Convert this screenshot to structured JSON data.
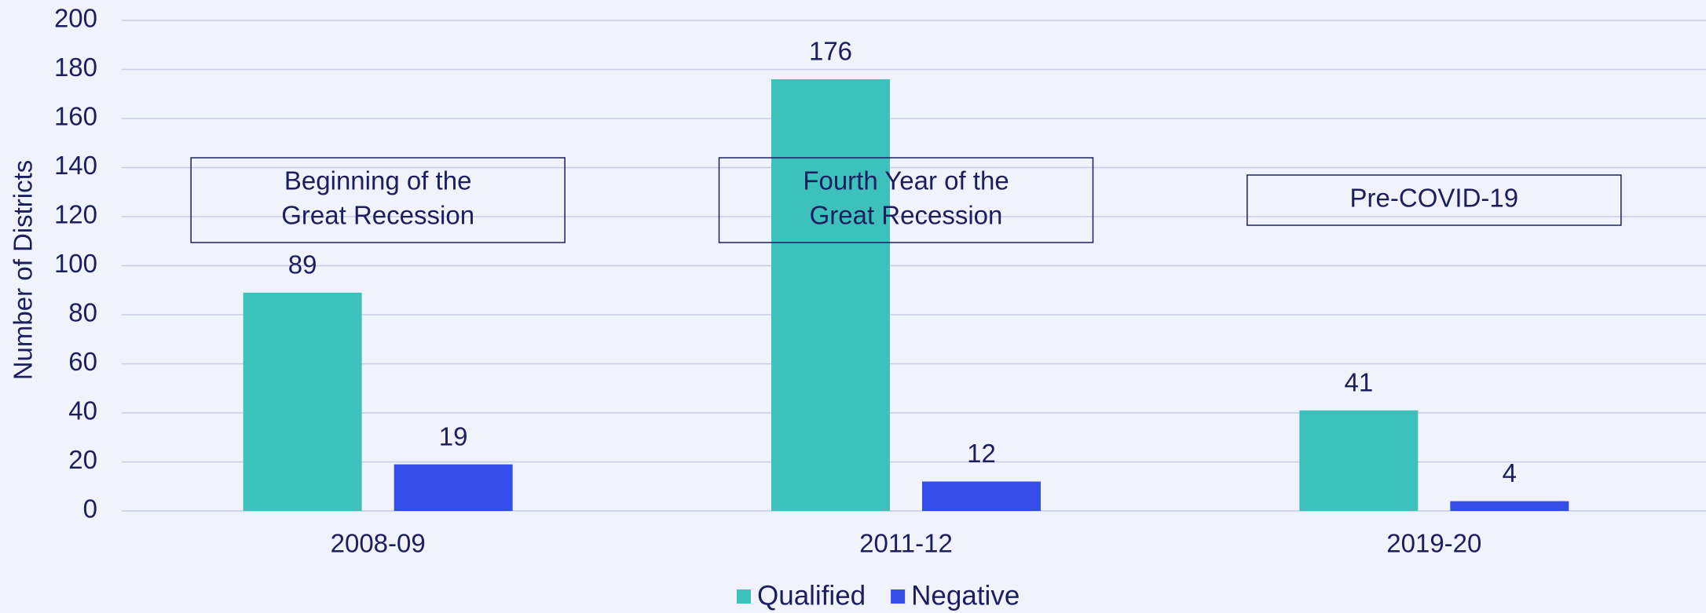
{
  "chart_data": {
    "type": "bar",
    "y_label": "Number of Districts",
    "categories": [
      "2008-09",
      "2011-12",
      "2019-20"
    ],
    "series": [
      {
        "name": "Qualified",
        "color": "#3cc1bc",
        "values": [
          89,
          176,
          41
        ]
      },
      {
        "name": "Negative",
        "color": "#344de8",
        "values": [
          19,
          12,
          4
        ]
      }
    ],
    "annotations": [
      [
        "Beginning of the",
        "Great Recession"
      ],
      [
        "Fourth Year of the",
        "Great Recession"
      ],
      [
        "Pre-COVID-19"
      ]
    ],
    "ylim": [
      0,
      200
    ],
    "yticks": [
      0,
      20,
      40,
      60,
      80,
      100,
      120,
      140,
      160,
      180,
      200
    ],
    "grid": true,
    "legend": "bottom"
  }
}
